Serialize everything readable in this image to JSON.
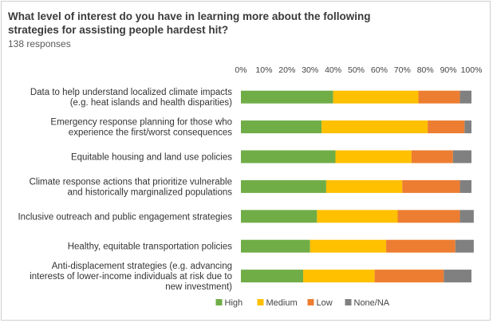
{
  "chart_data": {
    "type": "bar",
    "orientation": "horizontal-stacked-percent",
    "title": "What level of interest do you have in learning more about the following strategies for assisting people hardest hit?",
    "subtitle": "138 responses",
    "xlim": [
      0,
      100
    ],
    "xticks": [
      "0%",
      "10%",
      "20%",
      "30%",
      "40%",
      "50%",
      "60%",
      "70%",
      "80%",
      "90%",
      "100%"
    ],
    "legend_position": "bottom",
    "categories": [
      [
        "Data to help understand localized climate impacts",
        "(e.g. heat islands and health disparities)"
      ],
      [
        "Emergency response planning for those who",
        "experience the first/worst consequences"
      ],
      [
        "Equitable housing and land use policies"
      ],
      [
        "Climate response actions that prioritize vulnerable",
        "and historically marginalized populations"
      ],
      [
        "Inclusive outreach and public engagement strategies"
      ],
      [
        "Healthy, equitable transportation policies"
      ],
      [
        "Anti-displacement strategies (e.g. advancing",
        "interests of lower-income individuals at risk due to",
        "new investment)"
      ]
    ],
    "series": [
      {
        "name": "High",
        "color": "#70ad47",
        "values": [
          40,
          35,
          41,
          37,
          33,
          30,
          27
        ]
      },
      {
        "name": "Medium",
        "color": "#ffc000",
        "values": [
          37,
          46,
          33,
          33,
          35,
          33,
          31
        ]
      },
      {
        "name": "Low",
        "color": "#ed7d31",
        "values": [
          18,
          16,
          18,
          25,
          27,
          30,
          30
        ]
      },
      {
        "name": "None/NA",
        "color": "#808080",
        "values": [
          5,
          3,
          8,
          5,
          6,
          8,
          12
        ]
      }
    ]
  }
}
